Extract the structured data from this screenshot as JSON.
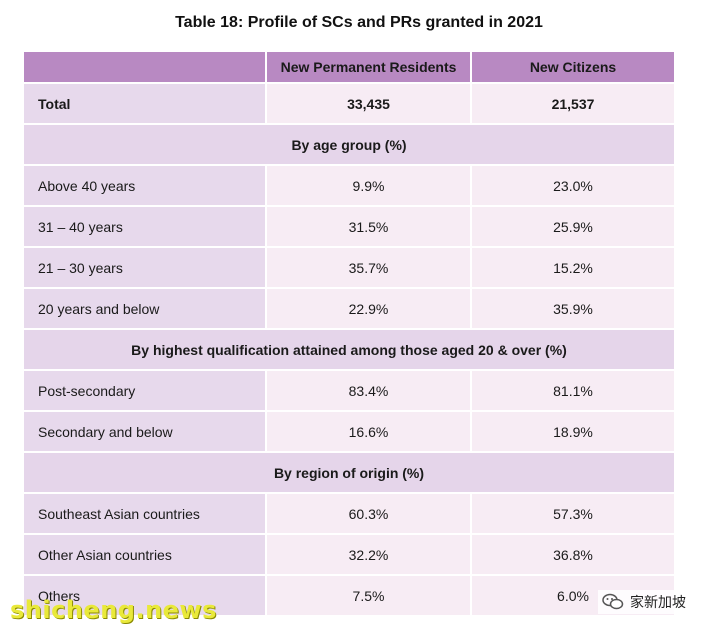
{
  "title": "Table 18: Profile of SCs and PRs granted in 2021",
  "header": [
    "",
    "New Permanent Residents",
    "New Citizens"
  ],
  "total": {
    "label": "Total",
    "pr": "33,435",
    "sc": "21,537"
  },
  "sections": [
    {
      "heading": "By age group (%)",
      "rows": [
        {
          "label": "Above 40 years",
          "pr": "9.9%",
          "sc": "23.0%"
        },
        {
          "label": "31 – 40 years",
          "pr": "31.5%",
          "sc": "25.9%"
        },
        {
          "label": "21 – 30 years",
          "pr": "35.7%",
          "sc": "15.2%"
        },
        {
          "label": "20 years and below",
          "pr": "22.9%",
          "sc": "35.9%"
        }
      ]
    },
    {
      "heading": "By highest qualification attained among those aged 20 & over (%)",
      "rows": [
        {
          "label": "Post-secondary",
          "pr": "83.4%",
          "sc": "81.1%"
        },
        {
          "label": "Secondary and below",
          "pr": "16.6%",
          "sc": "18.9%"
        }
      ]
    },
    {
      "heading": "By region of origin (%)",
      "rows": [
        {
          "label": "Southeast Asian countries",
          "pr": "60.3%",
          "sc": "57.3%"
        },
        {
          "label": "Other Asian countries",
          "pr": "32.2%",
          "sc": "36.8%"
        },
        {
          "label": "Others",
          "pr": "7.5%",
          "sc": "6.0%"
        }
      ]
    }
  ],
  "watermark": "shicheng.news",
  "wechat_label": "家新加坡",
  "colors": {
    "header": "#b889c2",
    "label_cell": "#e7d9ec",
    "value_cell": "#f7ecf4",
    "watermark": "#e9e93a"
  }
}
